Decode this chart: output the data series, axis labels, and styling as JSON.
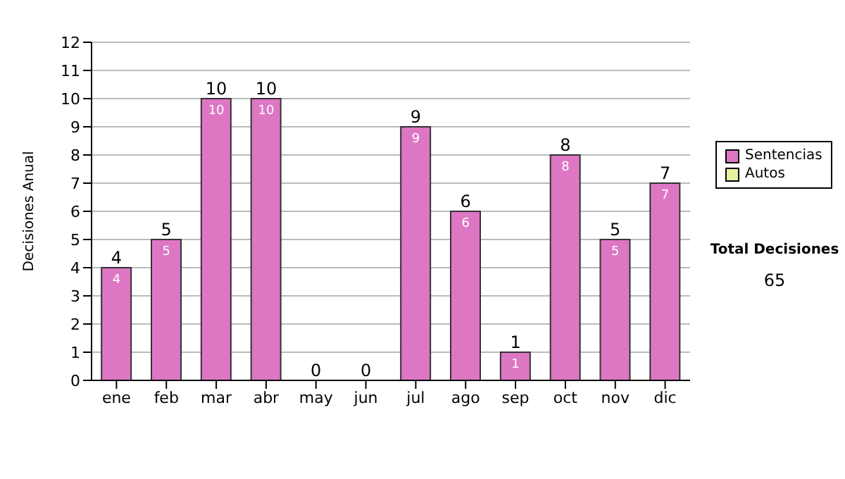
{
  "chart_data": {
    "type": "bar",
    "stacked": true,
    "categories": [
      "ene",
      "feb",
      "mar",
      "abr",
      "may",
      "jun",
      "jul",
      "ago",
      "sep",
      "oct",
      "nov",
      "dic"
    ],
    "series": [
      {
        "name": "Sentencias",
        "color": "#dd77c4",
        "values": [
          4,
          5,
          10,
          10,
          0,
          0,
          9,
          6,
          1,
          8,
          5,
          7
        ],
        "value_labels": [
          "4",
          "5",
          "10",
          "10",
          null,
          null,
          "9",
          "6",
          "1",
          "8",
          "5",
          "7"
        ]
      },
      {
        "name": "Autos",
        "color": "#e8f0a0",
        "values": [
          0,
          0,
          0,
          0,
          0,
          0,
          0,
          0,
          0,
          0,
          0,
          0
        ]
      }
    ],
    "ylabel": "Decisiones Anual",
    "ylim": [
      0,
      12
    ],
    "yticks": [
      0,
      1,
      2,
      3,
      4,
      5,
      6,
      7,
      8,
      9,
      10,
      11,
      12
    ],
    "grid": "y",
    "legend": "right",
    "totals": [
      "4",
      "5",
      "10",
      "10",
      "0",
      "0",
      "9",
      "6",
      "1",
      "8",
      "5",
      "7"
    ],
    "annotations": [
      "Total Decisiones",
      "65"
    ]
  }
}
